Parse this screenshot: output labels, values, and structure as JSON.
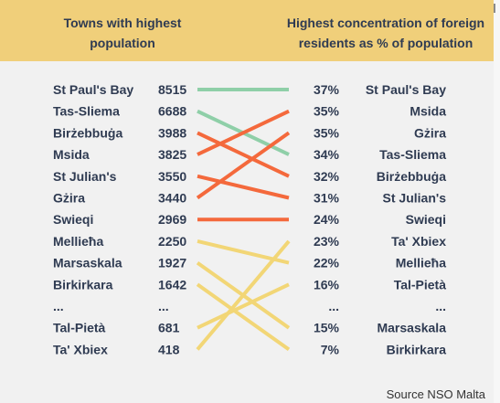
{
  "header": {
    "left_title": "Towns with highest population",
    "right_title": "Highest concentration of foreign residents as % of population"
  },
  "source": "Source NSO Malta",
  "colors": {
    "header_bg": "#f0cf7a",
    "green": "#8fcfa8",
    "orange": "#f4693c",
    "yellow": "#f2d676",
    "text": "#2f3b52"
  },
  "chart_data": {
    "type": "slope",
    "left_column": [
      {
        "town": "St Paul's Bay",
        "population": "8515"
      },
      {
        "town": "Tas-Sliema",
        "population": "6688"
      },
      {
        "town": "Birżebbuġa",
        "population": "3988"
      },
      {
        "town": "Msida",
        "population": "3825"
      },
      {
        "town": "St Julian's",
        "population": "3550"
      },
      {
        "town": "Gżira",
        "population": "3440"
      },
      {
        "town": "Swieqi",
        "population": "2969"
      },
      {
        "town": "Mellieħa",
        "population": "2250"
      },
      {
        "town": "Marsaskala",
        "population": "1927"
      },
      {
        "town": "Birkirkara",
        "population": "1642"
      },
      {
        "town": "...",
        "population": "..."
      },
      {
        "town": "Tal-Pietà",
        "population": "681"
      },
      {
        "town": "Ta' Xbiex",
        "population": "418"
      }
    ],
    "right_column": [
      {
        "town": "St Paul's Bay",
        "percent": "37%"
      },
      {
        "town": "Msida",
        "percent": "35%"
      },
      {
        "town": "Gżira",
        "percent": "35%"
      },
      {
        "town": "Tas-Sliema",
        "percent": "34%"
      },
      {
        "town": "Birżebbuġa",
        "percent": "32%"
      },
      {
        "town": "St Julian's",
        "percent": "31%"
      },
      {
        "town": "Swieqi",
        "percent": "24%"
      },
      {
        "town": "Ta' Xbiex",
        "percent": "23%"
      },
      {
        "town": "Mellieħa",
        "percent": "22%"
      },
      {
        "town": "Tal-Pietà",
        "percent": "16%"
      },
      {
        "town": "...",
        "percent": "..."
      },
      {
        "town": "Marsaskala",
        "percent": "15%"
      },
      {
        "town": "Birkirkara",
        "percent": "7%"
      }
    ],
    "links": [
      {
        "town": "St Paul's Bay",
        "from_rank": 0,
        "to_rank": 0,
        "color": "green"
      },
      {
        "town": "Tas-Sliema",
        "from_rank": 1,
        "to_rank": 3,
        "color": "green"
      },
      {
        "town": "Birżebbuġa",
        "from_rank": 2,
        "to_rank": 4,
        "color": "orange"
      },
      {
        "town": "Msida",
        "from_rank": 3,
        "to_rank": 1,
        "color": "orange"
      },
      {
        "town": "St Julian's",
        "from_rank": 4,
        "to_rank": 5,
        "color": "orange"
      },
      {
        "town": "Gżira",
        "from_rank": 5,
        "to_rank": 2,
        "color": "orange"
      },
      {
        "town": "Swieqi",
        "from_rank": 6,
        "to_rank": 6,
        "color": "orange"
      },
      {
        "town": "Mellieħa",
        "from_rank": 7,
        "to_rank": 8,
        "color": "yellow"
      },
      {
        "town": "Marsaskala",
        "from_rank": 8,
        "to_rank": 11,
        "color": "yellow"
      },
      {
        "town": "Birkirkara",
        "from_rank": 9,
        "to_rank": 12,
        "color": "yellow"
      },
      {
        "town": "Tal-Pietà",
        "from_rank": 11,
        "to_rank": 9,
        "color": "yellow"
      },
      {
        "town": "Ta' Xbiex",
        "from_rank": 12,
        "to_rank": 7,
        "color": "yellow"
      }
    ]
  }
}
